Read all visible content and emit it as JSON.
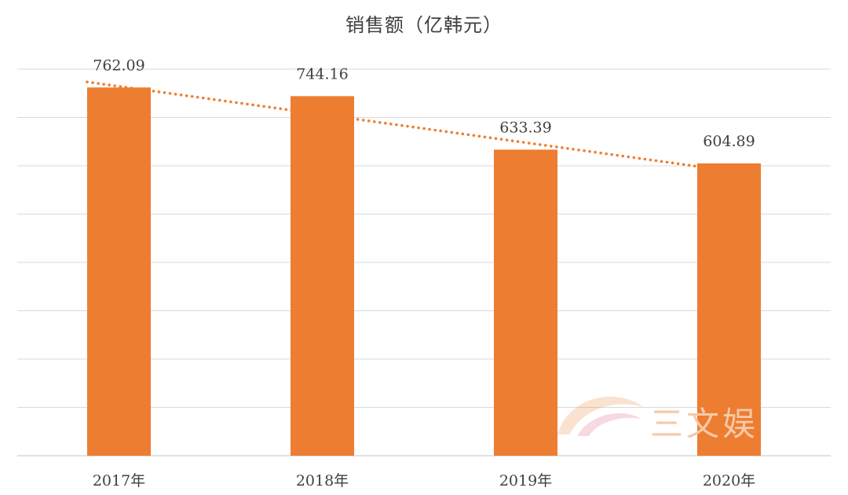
{
  "chart_data": {
    "type": "bar",
    "title": "销售额（亿韩元）",
    "categories": [
      "2017年",
      "2018年",
      "2019年",
      "2020年"
    ],
    "values": [
      762.09,
      744.16,
      633.39,
      604.89
    ],
    "ylim": [
      0,
      800
    ],
    "grid": true,
    "trendline": {
      "type": "linear",
      "style": "dotted"
    },
    "colors": {
      "bar": "#ED7D31",
      "trendline": "#ED7D31",
      "grid": "#D9D9D9"
    }
  },
  "watermark": {
    "text": "三文娱"
  }
}
